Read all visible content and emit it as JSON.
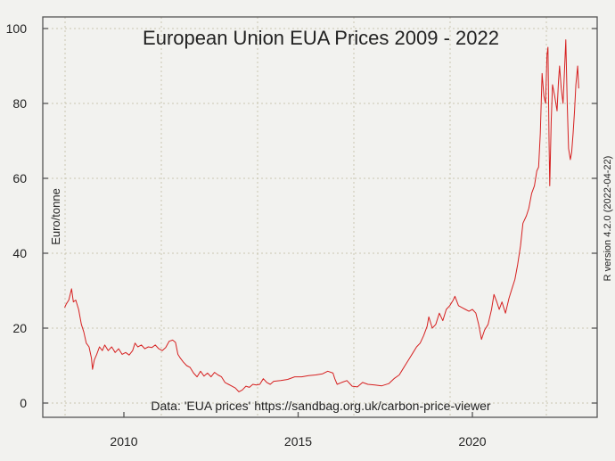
{
  "chart_data": {
    "type": "line",
    "title": "European Union EUA Prices 2009 - 2022",
    "ylabel": "Euro/tonne",
    "xlabel": "",
    "annotation": "Data: 'EUA prices' https://sandbag.org.uk/carbon-price-viewer",
    "side_note": "R version 4.2.0 (2022-04-22)",
    "xlim": [
      2007.7,
      2023.6
    ],
    "ylim": [
      -3,
      103
    ],
    "x_ticks": [
      2010,
      2015,
      2020
    ],
    "x_tick_labels": [
      "2010",
      "2015",
      "2020"
    ],
    "y_ticks": [
      0,
      20,
      40,
      60,
      80,
      100
    ],
    "y_tick_labels": [
      "0",
      "20",
      "40",
      "60",
      "80",
      "100"
    ],
    "grid": true,
    "series": [
      {
        "name": "EUA price",
        "color": "#d62020",
        "points": [
          [
            2008.3,
            25.5
          ],
          [
            2008.35,
            26.5
          ],
          [
            2008.42,
            27.5
          ],
          [
            2008.5,
            30.5
          ],
          [
            2008.55,
            27
          ],
          [
            2008.62,
            27.5
          ],
          [
            2008.7,
            25
          ],
          [
            2008.78,
            21
          ],
          [
            2008.85,
            19
          ],
          [
            2008.92,
            16
          ],
          [
            2009.0,
            15
          ],
          [
            2009.07,
            12
          ],
          [
            2009.1,
            9
          ],
          [
            2009.15,
            11.5
          ],
          [
            2009.22,
            13
          ],
          [
            2009.3,
            15
          ],
          [
            2009.38,
            14
          ],
          [
            2009.45,
            15.5
          ],
          [
            2009.55,
            14
          ],
          [
            2009.65,
            15
          ],
          [
            2009.75,
            13.5
          ],
          [
            2009.85,
            14.5
          ],
          [
            2009.95,
            13
          ],
          [
            2010.05,
            13.5
          ],
          [
            2010.15,
            12.8
          ],
          [
            2010.25,
            14
          ],
          [
            2010.32,
            16
          ],
          [
            2010.4,
            15
          ],
          [
            2010.5,
            15.5
          ],
          [
            2010.6,
            14.5
          ],
          [
            2010.7,
            15
          ],
          [
            2010.8,
            14.8
          ],
          [
            2010.9,
            15.5
          ],
          [
            2011.0,
            14.5
          ],
          [
            2011.1,
            14
          ],
          [
            2011.2,
            14.8
          ],
          [
            2011.3,
            16.5
          ],
          [
            2011.4,
            16.8
          ],
          [
            2011.48,
            16.2
          ],
          [
            2011.55,
            13
          ],
          [
            2011.62,
            12
          ],
          [
            2011.7,
            11
          ],
          [
            2011.8,
            10
          ],
          [
            2011.9,
            9.5
          ],
          [
            2012.0,
            8
          ],
          [
            2012.1,
            7
          ],
          [
            2012.2,
            8.5
          ],
          [
            2012.3,
            7.2
          ],
          [
            2012.4,
            8
          ],
          [
            2012.5,
            7
          ],
          [
            2012.6,
            8.2
          ],
          [
            2012.7,
            7.5
          ],
          [
            2012.8,
            7
          ],
          [
            2012.9,
            5.5
          ],
          [
            2013.0,
            5
          ],
          [
            2013.1,
            4.5
          ],
          [
            2013.2,
            4
          ],
          [
            2013.3,
            3
          ],
          [
            2013.4,
            3.5
          ],
          [
            2013.5,
            4.5
          ],
          [
            2013.6,
            4.2
          ],
          [
            2013.7,
            5
          ],
          [
            2013.8,
            4.8
          ],
          [
            2013.9,
            5
          ],
          [
            2014.0,
            6.5
          ],
          [
            2014.1,
            5.5
          ],
          [
            2014.2,
            5
          ],
          [
            2014.3,
            5.8
          ],
          [
            2014.5,
            6
          ],
          [
            2014.7,
            6.3
          ],
          [
            2014.9,
            7
          ],
          [
            2015.1,
            7
          ],
          [
            2015.3,
            7.3
          ],
          [
            2015.5,
            7.5
          ],
          [
            2015.7,
            7.8
          ],
          [
            2015.85,
            8.5
          ],
          [
            2016.0,
            8
          ],
          [
            2016.05,
            6.5
          ],
          [
            2016.12,
            5
          ],
          [
            2016.25,
            5.5
          ],
          [
            2016.4,
            6
          ],
          [
            2016.55,
            4.5
          ],
          [
            2016.7,
            4.3
          ],
          [
            2016.85,
            5.5
          ],
          [
            2017.0,
            5
          ],
          [
            2017.2,
            4.8
          ],
          [
            2017.4,
            4.6
          ],
          [
            2017.6,
            5.2
          ],
          [
            2017.75,
            6.5
          ],
          [
            2017.9,
            7.5
          ],
          [
            2018.0,
            9
          ],
          [
            2018.1,
            10.5
          ],
          [
            2018.2,
            12
          ],
          [
            2018.3,
            13.5
          ],
          [
            2018.4,
            15
          ],
          [
            2018.5,
            16
          ],
          [
            2018.6,
            18
          ],
          [
            2018.7,
            20.5
          ],
          [
            2018.75,
            23
          ],
          [
            2018.85,
            20
          ],
          [
            2018.95,
            21
          ],
          [
            2019.05,
            24
          ],
          [
            2019.15,
            22
          ],
          [
            2019.25,
            25
          ],
          [
            2019.35,
            26
          ],
          [
            2019.45,
            27.5
          ],
          [
            2019.5,
            28.5
          ],
          [
            2019.6,
            26
          ],
          [
            2019.7,
            25.5
          ],
          [
            2019.8,
            25
          ],
          [
            2019.9,
            24.5
          ],
          [
            2020.0,
            25
          ],
          [
            2020.1,
            24
          ],
          [
            2020.18,
            21
          ],
          [
            2020.26,
            17
          ],
          [
            2020.35,
            19.5
          ],
          [
            2020.45,
            21
          ],
          [
            2020.55,
            25
          ],
          [
            2020.62,
            29
          ],
          [
            2020.7,
            27
          ],
          [
            2020.77,
            25
          ],
          [
            2020.85,
            27
          ],
          [
            2020.95,
            24
          ],
          [
            2021.05,
            28
          ],
          [
            2021.15,
            31
          ],
          [
            2021.22,
            33
          ],
          [
            2021.3,
            37
          ],
          [
            2021.38,
            42
          ],
          [
            2021.45,
            48
          ],
          [
            2021.55,
            50
          ],
          [
            2021.62,
            52
          ],
          [
            2021.7,
            56
          ],
          [
            2021.78,
            58
          ],
          [
            2021.85,
            62
          ],
          [
            2021.9,
            63
          ],
          [
            2021.95,
            72
          ],
          [
            2022.0,
            88
          ],
          [
            2022.05,
            82
          ],
          [
            2022.1,
            80
          ],
          [
            2022.14,
            93
          ],
          [
            2022.17,
            95
          ],
          [
            2022.2,
            70
          ],
          [
            2022.22,
            58
          ],
          [
            2022.26,
            75
          ],
          [
            2022.3,
            85
          ],
          [
            2022.36,
            82
          ],
          [
            2022.43,
            78
          ],
          [
            2022.47,
            86
          ],
          [
            2022.5,
            90
          ],
          [
            2022.55,
            84
          ],
          [
            2022.6,
            80
          ],
          [
            2022.64,
            88
          ],
          [
            2022.68,
            97
          ],
          [
            2022.72,
            80
          ],
          [
            2022.76,
            68
          ],
          [
            2022.81,
            65
          ],
          [
            2022.85,
            67
          ],
          [
            2022.89,
            72
          ],
          [
            2022.93,
            78
          ],
          [
            2022.97,
            85
          ],
          [
            2023.02,
            90
          ],
          [
            2023.05,
            84
          ]
        ]
      }
    ]
  }
}
